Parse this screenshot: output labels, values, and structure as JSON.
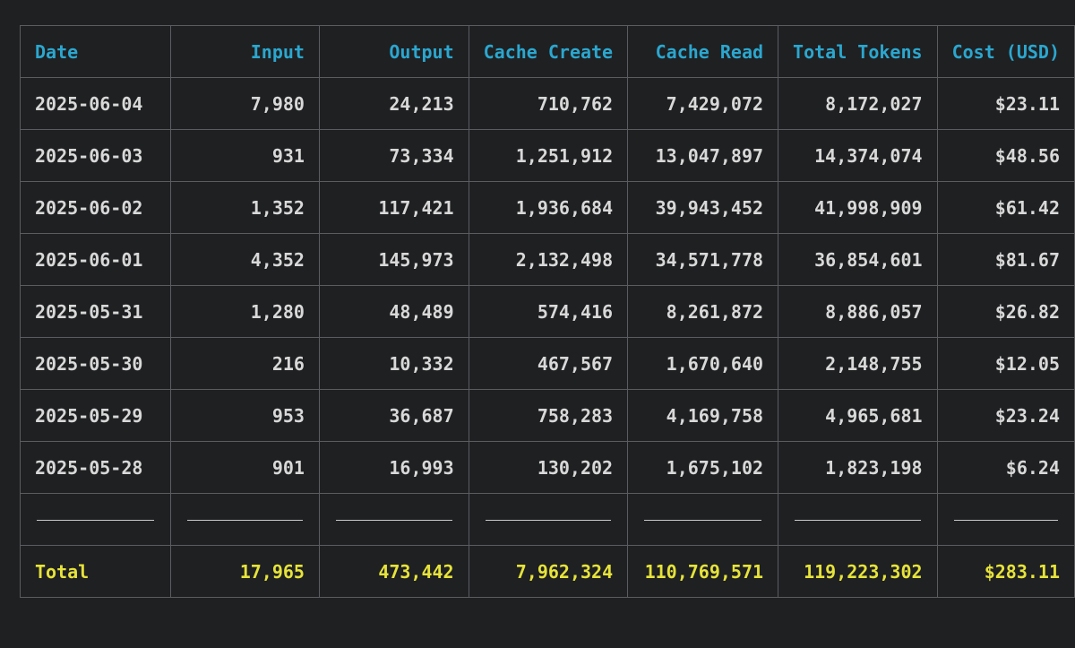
{
  "table": {
    "headers": [
      "Date",
      "Input",
      "Output",
      "Cache Create",
      "Cache Read",
      "Total Tokens",
      "Cost (USD)"
    ],
    "rows": [
      [
        "2025-06-04",
        "7,980",
        "24,213",
        "710,762",
        "7,429,072",
        "8,172,027",
        "$23.11"
      ],
      [
        "2025-06-03",
        "931",
        "73,334",
        "1,251,912",
        "13,047,897",
        "14,374,074",
        "$48.56"
      ],
      [
        "2025-06-02",
        "1,352",
        "117,421",
        "1,936,684",
        "39,943,452",
        "41,998,909",
        "$61.42"
      ],
      [
        "2025-06-01",
        "4,352",
        "145,973",
        "2,132,498",
        "34,571,778",
        "36,854,601",
        "$81.67"
      ],
      [
        "2025-05-31",
        "1,280",
        "48,489",
        "574,416",
        "8,261,872",
        "8,886,057",
        "$26.82"
      ],
      [
        "2025-05-30",
        "216",
        "10,332",
        "467,567",
        "1,670,640",
        "2,148,755",
        "$12.05"
      ],
      [
        "2025-05-29",
        "953",
        "36,687",
        "758,283",
        "4,169,758",
        "4,965,681",
        "$23.24"
      ],
      [
        "2025-05-28",
        "901",
        "16,993",
        "130,202",
        "1,675,102",
        "1,823,198",
        "$6.24"
      ]
    ],
    "total": [
      "Total",
      "17,965",
      "473,442",
      "7,962,324",
      "110,769,571",
      "119,223,302",
      "$283.11"
    ]
  },
  "colors": {
    "background": "#1f2022",
    "header_text": "#2ba7cf",
    "body_text": "#d8d8d8",
    "total_text": "#e6e33a",
    "border": "#5a5c60"
  }
}
